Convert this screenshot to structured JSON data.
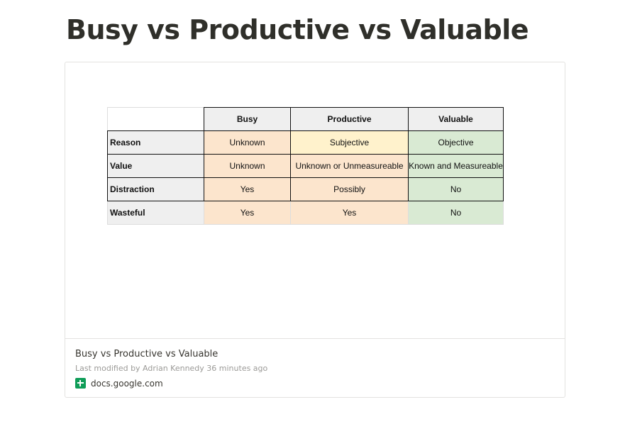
{
  "page": {
    "title": "Busy vs Productive vs Valuable"
  },
  "embed": {
    "title": "Busy vs Productive vs Valuable",
    "meta": "Last modified by Adrian Kennedy 36 minutes ago",
    "source": "docs.google.com",
    "icon": "google-sheets-icon"
  },
  "sheet": {
    "columns": [
      "Busy",
      "Productive",
      "Valuable"
    ],
    "rows": [
      {
        "label": "Reason",
        "cells": [
          "Unknown",
          "Subjective",
          "Objective"
        ]
      },
      {
        "label": "Value",
        "cells": [
          "Unknown",
          "Unknown or Unmeasureable",
          "Known and Measureable"
        ]
      },
      {
        "label": "Distraction",
        "cells": [
          "Yes",
          "Possibly",
          "No"
        ]
      },
      {
        "label": "Wasteful",
        "cells": [
          "Yes",
          "Yes",
          "No"
        ]
      }
    ],
    "colors": {
      "orange": "#fce5cd",
      "yellow": "#fff2cc",
      "green": "#d9ead3",
      "header": "#efefef"
    }
  }
}
